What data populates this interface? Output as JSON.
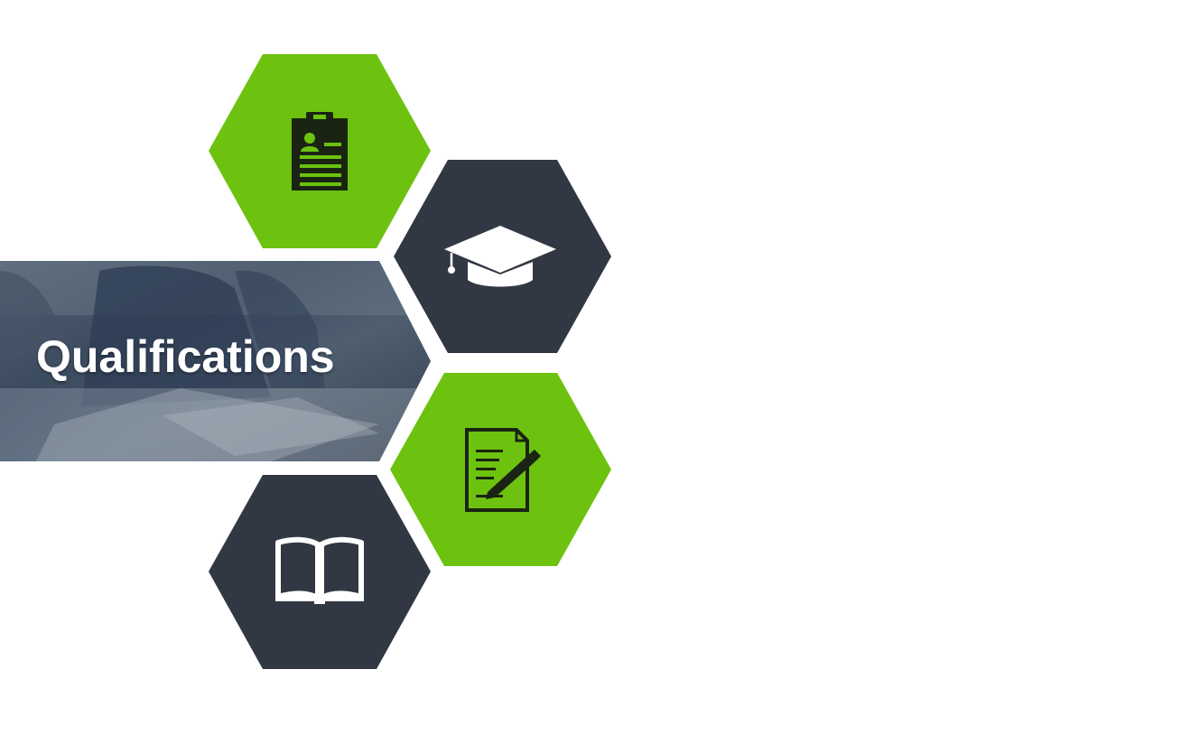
{
  "slide": {
    "title": "Qualifications"
  },
  "colors": {
    "green": "#6cc20f",
    "dark": "#323843",
    "icon_dark": "#1a2413",
    "icon_light": "#ffffff",
    "banner_overlay": "#3d4a5a"
  },
  "hexagons": [
    {
      "id": "resume",
      "color": "green",
      "icon": "clipboard-resume-icon"
    },
    {
      "id": "education",
      "color": "dark",
      "icon": "graduation-cap-icon"
    },
    {
      "id": "certificate",
      "color": "green",
      "icon": "document-pen-icon"
    },
    {
      "id": "study",
      "color": "dark",
      "icon": "open-book-icon"
    }
  ]
}
